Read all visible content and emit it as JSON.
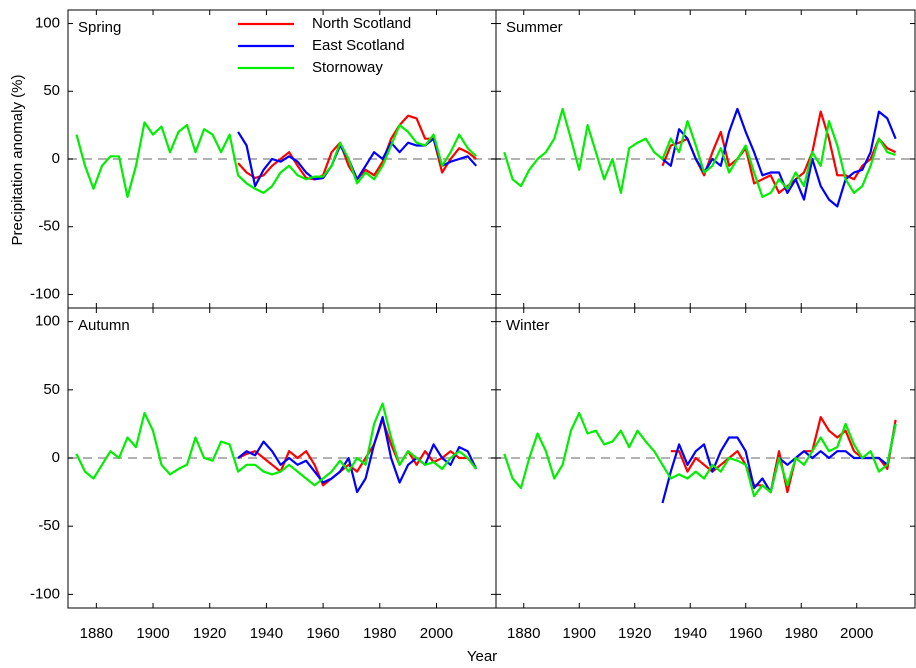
{
  "xlabel": "Year",
  "ylabel": "Precipitation anomaly (%)",
  "chart_data": [
    {
      "type": "line",
      "title": "Spring",
      "legend": "top-center",
      "zero_line": true,
      "xticklabels": false,
      "yticklabels": true,
      "xlim": [
        1870,
        2021
      ],
      "ylim": [
        -110,
        110
      ],
      "xticks": [
        1880,
        1900,
        1920,
        1940,
        1960,
        1980,
        2000
      ],
      "yticks": [
        -100,
        -50,
        0,
        50,
        100
      ],
      "x": [
        1873,
        1876,
        1879,
        1882,
        1885,
        1888,
        1891,
        1894,
        1897,
        1900,
        1903,
        1906,
        1909,
        1912,
        1915,
        1918,
        1921,
        1924,
        1927,
        1930,
        1933,
        1936,
        1939,
        1942,
        1945,
        1948,
        1951,
        1954,
        1957,
        1960,
        1963,
        1966,
        1969,
        1972,
        1975,
        1978,
        1981,
        1984,
        1987,
        1990,
        1993,
        1996,
        1999,
        2002,
        2005,
        2008,
        2011,
        2014
      ],
      "series": [
        {
          "name": "North Scotland",
          "color": "#ff0000",
          "values": [
            null,
            null,
            null,
            null,
            null,
            null,
            null,
            null,
            null,
            null,
            null,
            null,
            null,
            null,
            null,
            null,
            null,
            null,
            null,
            -3,
            -10,
            -14,
            -12,
            -5,
            0,
            5,
            -5,
            -14,
            -15,
            -12,
            5,
            12,
            -5,
            -15,
            -8,
            -12,
            -2,
            15,
            25,
            32,
            30,
            15,
            15,
            -10,
            0,
            8,
            5,
            0
          ]
        },
        {
          "name": "East Scotland",
          "color": "#0000ff",
          "values": [
            null,
            null,
            null,
            null,
            null,
            null,
            null,
            null,
            null,
            null,
            null,
            null,
            null,
            null,
            null,
            null,
            null,
            null,
            null,
            20,
            10,
            -20,
            -8,
            0,
            -2,
            2,
            -2,
            -10,
            -15,
            -14,
            -5,
            10,
            0,
            -15,
            -5,
            5,
            0,
            12,
            5,
            12,
            10,
            10,
            15,
            -5,
            -2,
            0,
            2,
            -5
          ]
        },
        {
          "name": "Stornoway",
          "color": "#00ee00",
          "values": [
            18,
            -5,
            -22,
            -5,
            2,
            2,
            -28,
            -5,
            27,
            18,
            24,
            5,
            20,
            25,
            5,
            22,
            18,
            5,
            18,
            -12,
            -18,
            -22,
            -25,
            -20,
            -10,
            -5,
            -12,
            -15,
            -13,
            -13,
            -5,
            12,
            0,
            -18,
            -10,
            -15,
            -5,
            10,
            25,
            20,
            12,
            10,
            18,
            -5,
            5,
            18,
            8,
            2
          ]
        }
      ]
    },
    {
      "type": "line",
      "title": "Summer",
      "zero_line": true,
      "xticklabels": false,
      "yticklabels": false,
      "xlim": [
        1870,
        2021
      ],
      "ylim": [
        -110,
        110
      ],
      "xticks": [
        1880,
        1900,
        1920,
        1940,
        1960,
        1980,
        2000
      ],
      "yticks": [
        -100,
        -50,
        0,
        50,
        100
      ],
      "x": [
        1873,
        1876,
        1879,
        1882,
        1885,
        1888,
        1891,
        1894,
        1897,
        1900,
        1903,
        1906,
        1909,
        1912,
        1915,
        1918,
        1921,
        1924,
        1927,
        1930,
        1933,
        1936,
        1939,
        1942,
        1945,
        1948,
        1951,
        1954,
        1957,
        1960,
        1963,
        1966,
        1969,
        1972,
        1975,
        1978,
        1981,
        1984,
        1987,
        1990,
        1993,
        1996,
        1999,
        2002,
        2005,
        2008,
        2011,
        2014
      ],
      "series": [
        {
          "color": "#ff0000",
          "values": [
            null,
            null,
            null,
            null,
            null,
            null,
            null,
            null,
            null,
            null,
            null,
            null,
            null,
            null,
            null,
            null,
            null,
            null,
            null,
            -5,
            10,
            12,
            15,
            0,
            -12,
            5,
            20,
            -5,
            0,
            8,
            -18,
            -15,
            -12,
            -25,
            -20,
            -15,
            -10,
            5,
            35,
            15,
            -12,
            -12,
            -15,
            -5,
            0,
            15,
            8,
            5
          ]
        },
        {
          "color": "#0000ff",
          "values": [
            null,
            null,
            null,
            null,
            null,
            null,
            null,
            null,
            null,
            null,
            null,
            null,
            null,
            null,
            null,
            null,
            null,
            null,
            null,
            0,
            -5,
            22,
            15,
            0,
            -10,
            0,
            -5,
            20,
            37,
            20,
            5,
            -12,
            -10,
            -10,
            -25,
            -15,
            -30,
            0,
            -20,
            -30,
            -35,
            -15,
            -10,
            -8,
            5,
            35,
            30,
            15
          ]
        },
        {
          "color": "#00ee00",
          "values": [
            5,
            -15,
            -20,
            -8,
            0,
            5,
            15,
            37,
            15,
            -8,
            25,
            5,
            -15,
            0,
            -25,
            8,
            12,
            15,
            5,
            0,
            15,
            5,
            28,
            10,
            -10,
            -5,
            8,
            -10,
            0,
            10,
            -10,
            -28,
            -25,
            -15,
            -22,
            -10,
            -20,
            5,
            -5,
            28,
            10,
            -15,
            -25,
            -20,
            -5,
            15,
            5,
            3
          ]
        }
      ]
    },
    {
      "type": "line",
      "title": "Autumn",
      "zero_line": true,
      "xticklabels": true,
      "yticklabels": true,
      "xlim": [
        1870,
        2021
      ],
      "ylim": [
        -110,
        110
      ],
      "xticks": [
        1880,
        1900,
        1920,
        1940,
        1960,
        1980,
        2000
      ],
      "yticks": [
        -100,
        -50,
        0,
        50,
        100
      ],
      "x": [
        1873,
        1876,
        1879,
        1882,
        1885,
        1888,
        1891,
        1894,
        1897,
        1900,
        1903,
        1906,
        1909,
        1912,
        1915,
        1918,
        1921,
        1924,
        1927,
        1930,
        1933,
        1936,
        1939,
        1942,
        1945,
        1948,
        1951,
        1954,
        1957,
        1960,
        1963,
        1966,
        1969,
        1972,
        1975,
        1978,
        1981,
        1984,
        1987,
        1990,
        1993,
        1996,
        1999,
        2002,
        2005,
        2008,
        2011,
        2014
      ],
      "series": [
        {
          "color": "#ff0000",
          "values": [
            null,
            null,
            null,
            null,
            null,
            null,
            null,
            null,
            null,
            null,
            null,
            null,
            null,
            null,
            null,
            null,
            null,
            null,
            null,
            0,
            3,
            5,
            0,
            -5,
            -10,
            5,
            0,
            5,
            -5,
            -20,
            -15,
            -10,
            -5,
            -10,
            0,
            10,
            28,
            10,
            -5,
            5,
            -5,
            5,
            -3,
            0,
            5,
            0,
            0,
            -8
          ]
        },
        {
          "color": "#0000ff",
          "values": [
            null,
            null,
            null,
            null,
            null,
            null,
            null,
            null,
            null,
            null,
            null,
            null,
            null,
            null,
            null,
            null,
            null,
            null,
            null,
            0,
            5,
            2,
            12,
            5,
            -5,
            0,
            -5,
            -2,
            -10,
            -18,
            -15,
            -10,
            0,
            -25,
            -15,
            10,
            30,
            0,
            -18,
            -5,
            0,
            -5,
            10,
            0,
            -5,
            8,
            5,
            -8
          ]
        },
        {
          "color": "#00ee00",
          "values": [
            3,
            -10,
            -15,
            -5,
            5,
            0,
            15,
            8,
            33,
            20,
            -5,
            -12,
            -8,
            -5,
            15,
            0,
            -2,
            12,
            10,
            -10,
            -5,
            -5,
            -10,
            -12,
            -10,
            -5,
            -10,
            -15,
            -20,
            -15,
            -10,
            -2,
            -10,
            0,
            -5,
            25,
            40,
            15,
            -5,
            5,
            0,
            -5,
            -3,
            -8,
            0,
            5,
            0,
            -8
          ]
        }
      ]
    },
    {
      "type": "line",
      "title": "Winter",
      "zero_line": true,
      "xticklabels": true,
      "yticklabels": false,
      "xlim": [
        1870,
        2021
      ],
      "ylim": [
        -110,
        110
      ],
      "xticks": [
        1880,
        1900,
        1920,
        1940,
        1960,
        1980,
        2000
      ],
      "yticks": [
        -100,
        -50,
        0,
        50,
        100
      ],
      "x": [
        1873,
        1876,
        1879,
        1882,
        1885,
        1888,
        1891,
        1894,
        1897,
        1900,
        1903,
        1906,
        1909,
        1912,
        1915,
        1918,
        1921,
        1924,
        1927,
        1930,
        1933,
        1936,
        1939,
        1942,
        1945,
        1948,
        1951,
        1954,
        1957,
        1960,
        1963,
        1966,
        1969,
        1972,
        1975,
        1978,
        1981,
        1984,
        1987,
        1990,
        1993,
        1996,
        1999,
        2002,
        2005,
        2008,
        2011,
        2014
      ],
      "series": [
        {
          "color": "#ff0000",
          "values": [
            null,
            null,
            null,
            null,
            null,
            null,
            null,
            null,
            null,
            null,
            null,
            null,
            null,
            null,
            null,
            null,
            null,
            null,
            null,
            null,
            5,
            5,
            -10,
            0,
            -5,
            -10,
            -5,
            0,
            5,
            -5,
            -20,
            -20,
            -25,
            5,
            -25,
            0,
            5,
            5,
            30,
            20,
            15,
            20,
            5,
            0,
            0,
            0,
            -8,
            28
          ]
        },
        {
          "color": "#0000ff",
          "values": [
            null,
            null,
            null,
            null,
            null,
            null,
            null,
            null,
            null,
            null,
            null,
            null,
            null,
            null,
            null,
            null,
            null,
            null,
            null,
            -33,
            -10,
            10,
            -5,
            5,
            10,
            -10,
            5,
            15,
            15,
            5,
            -22,
            -15,
            -25,
            0,
            -5,
            0,
            5,
            0,
            5,
            0,
            5,
            5,
            0,
            0,
            0,
            0,
            -5,
            25
          ]
        },
        {
          "color": "#00ee00",
          "values": [
            3,
            -15,
            -22,
            0,
            18,
            5,
            -15,
            -5,
            20,
            33,
            18,
            20,
            10,
            12,
            20,
            8,
            20,
            12,
            5,
            -5,
            -15,
            -12,
            -15,
            -10,
            -15,
            -5,
            -10,
            0,
            -2,
            -5,
            -28,
            -20,
            -25,
            0,
            -20,
            0,
            -5,
            5,
            15,
            5,
            8,
            25,
            10,
            0,
            5,
            -10,
            -5,
            25
          ]
        }
      ]
    }
  ]
}
